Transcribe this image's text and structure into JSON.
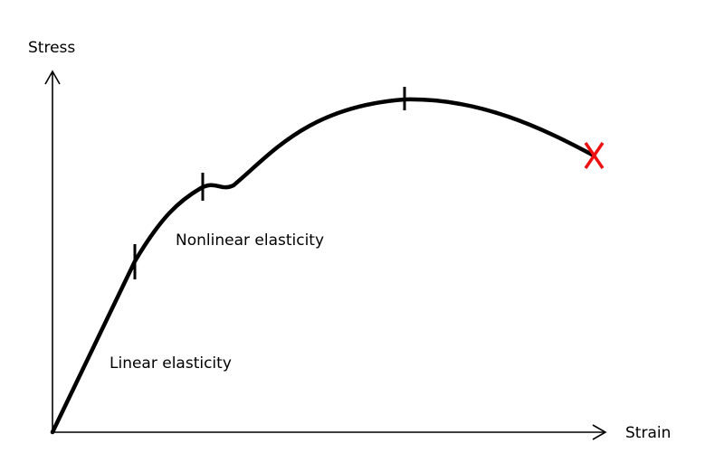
{
  "axes": {
    "y_label": "Stress",
    "x_label": "Strain"
  },
  "regions": {
    "linear": "Linear elasticity",
    "nonlinear": "Nonlinear elasticity"
  },
  "colors": {
    "curve": "#000000",
    "axis": "#000000",
    "fracture": "#ee1111"
  },
  "markers": {
    "fracture_icon": "x-mark"
  }
}
